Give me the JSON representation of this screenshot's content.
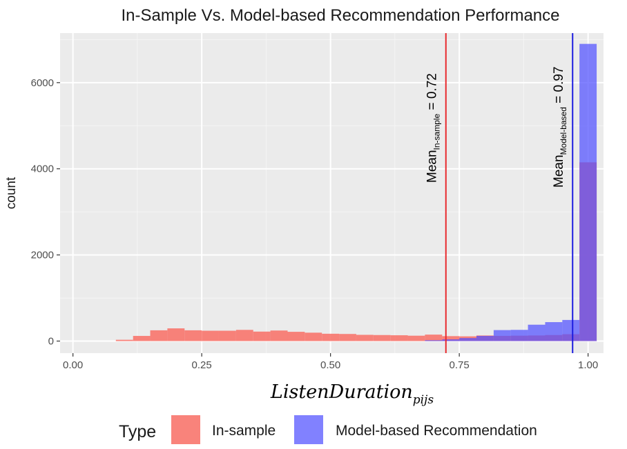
{
  "chart_data": {
    "type": "bar",
    "title": "In-Sample Vs. Model-based Recommendation Performance",
    "xlabel": "ListenDuration",
    "xlabel_subscript": "pijs",
    "ylabel": "count",
    "xlim": [
      -0.025,
      1.03
    ],
    "ylim": [
      -280,
      7150
    ],
    "x_ticks": [
      0.0,
      0.25,
      0.5,
      0.75,
      1.0
    ],
    "x_tick_labels": [
      "0.00",
      "0.25",
      "0.50",
      "0.75",
      "1.00"
    ],
    "y_ticks": [
      0,
      2000,
      4000,
      6000
    ],
    "y_tick_labels": [
      "0",
      "2000",
      "4000",
      "6000"
    ],
    "grid": true,
    "bin_width": 0.0333,
    "legend": {
      "title": "Type",
      "placement": "bottom"
    },
    "series": [
      {
        "name": "In-sample",
        "color": "#F8766D",
        "opacity": 0.9,
        "bins": [
          {
            "x0": 0.0833,
            "x1": 0.1167,
            "count": 30
          },
          {
            "x0": 0.1167,
            "x1": 0.15,
            "count": 120
          },
          {
            "x0": 0.15,
            "x1": 0.1833,
            "count": 250
          },
          {
            "x0": 0.1833,
            "x1": 0.2167,
            "count": 295
          },
          {
            "x0": 0.2167,
            "x1": 0.25,
            "count": 250
          },
          {
            "x0": 0.25,
            "x1": 0.2833,
            "count": 240
          },
          {
            "x0": 0.2833,
            "x1": 0.3167,
            "count": 240
          },
          {
            "x0": 0.3167,
            "x1": 0.35,
            "count": 260
          },
          {
            "x0": 0.35,
            "x1": 0.3833,
            "count": 220
          },
          {
            "x0": 0.3833,
            "x1": 0.4167,
            "count": 245
          },
          {
            "x0": 0.4167,
            "x1": 0.45,
            "count": 215
          },
          {
            "x0": 0.45,
            "x1": 0.4833,
            "count": 195
          },
          {
            "x0": 0.4833,
            "x1": 0.5167,
            "count": 170
          },
          {
            "x0": 0.5167,
            "x1": 0.55,
            "count": 165
          },
          {
            "x0": 0.55,
            "x1": 0.5833,
            "count": 145
          },
          {
            "x0": 0.5833,
            "x1": 0.6167,
            "count": 140
          },
          {
            "x0": 0.6167,
            "x1": 0.65,
            "count": 135
          },
          {
            "x0": 0.65,
            "x1": 0.6833,
            "count": 125
          },
          {
            "x0": 0.6833,
            "x1": 0.7167,
            "count": 150
          },
          {
            "x0": 0.7167,
            "x1": 0.75,
            "count": 115
          },
          {
            "x0": 0.75,
            "x1": 0.7833,
            "count": 110
          },
          {
            "x0": 0.7833,
            "x1": 0.8167,
            "count": 130
          },
          {
            "x0": 0.8167,
            "x1": 0.85,
            "count": 120
          },
          {
            "x0": 0.85,
            "x1": 0.8833,
            "count": 125
          },
          {
            "x0": 0.8833,
            "x1": 0.9167,
            "count": 130
          },
          {
            "x0": 0.9167,
            "x1": 0.95,
            "count": 140
          },
          {
            "x0": 0.95,
            "x1": 0.9833,
            "count": 160
          },
          {
            "x0": 0.9833,
            "x1": 1.0167,
            "count": 4150
          }
        ]
      },
      {
        "name": "Model-based Recommendation",
        "color": "#5050FF",
        "opacity": 0.72,
        "bins": [
          {
            "x0": 0.6833,
            "x1": 0.7167,
            "count": 20
          },
          {
            "x0": 0.7167,
            "x1": 0.75,
            "count": 40
          },
          {
            "x0": 0.75,
            "x1": 0.7833,
            "count": 70
          },
          {
            "x0": 0.7833,
            "x1": 0.8167,
            "count": 120
          },
          {
            "x0": 0.8167,
            "x1": 0.85,
            "count": 255
          },
          {
            "x0": 0.85,
            "x1": 0.8833,
            "count": 260
          },
          {
            "x0": 0.8833,
            "x1": 0.9167,
            "count": 380
          },
          {
            "x0": 0.9167,
            "x1": 0.95,
            "count": 440
          },
          {
            "x0": 0.95,
            "x1": 0.9833,
            "count": 490
          },
          {
            "x0": 0.9833,
            "x1": 1.0167,
            "count": 6900
          }
        ]
      }
    ],
    "reference_lines": [
      {
        "label_main": "Mean",
        "label_sub": "In-sample",
        "label_value": " = 0.72",
        "x": 0.724,
        "color": "#E8282C"
      },
      {
        "label_main": "Mean",
        "label_sub": "Model-based",
        "label_value": " = 0.97",
        "x": 0.97,
        "color": "#1C1CE0"
      }
    ]
  }
}
